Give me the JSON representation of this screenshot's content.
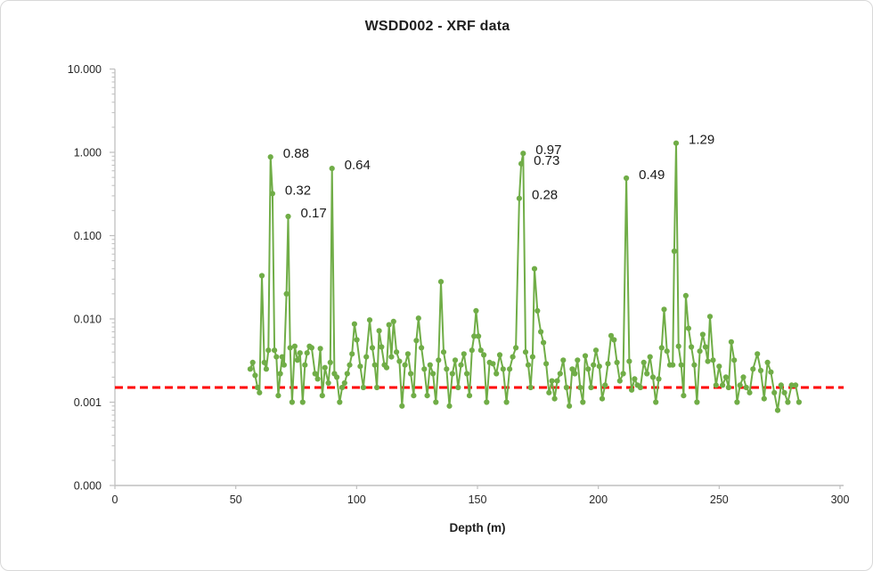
{
  "header": {
    "title": "WSDD002 - XRF data"
  },
  "colors": {
    "series_green": "#70AD47",
    "threshold_red": "#FF0000",
    "axis_gray": "#BFBFBF",
    "text_dark": "#262626"
  },
  "chart_data": {
    "type": "line",
    "title": "WSDD002 - XRF data",
    "xlabel": "Depth (m)",
    "ylabel": "",
    "grid": false,
    "legend": "none",
    "x_scale": "linear",
    "y_scale": "log",
    "xlim": [
      0,
      300
    ],
    "ylim": [
      0.0001,
      10
    ],
    "x_ticks": [
      {
        "value": 0,
        "label": "0"
      },
      {
        "value": 50,
        "label": "50"
      },
      {
        "value": 100,
        "label": "100"
      },
      {
        "value": 150,
        "label": "150"
      },
      {
        "value": 200,
        "label": "200"
      },
      {
        "value": 250,
        "label": "250"
      },
      {
        "value": 300,
        "label": "300"
      }
    ],
    "y_ticks": [
      {
        "value": 0.0001,
        "label": "0.000"
      },
      {
        "value": 0.001,
        "label": "0.001"
      },
      {
        "value": 0.01,
        "label": "0.010"
      },
      {
        "value": 0.1,
        "label": "0.100"
      },
      {
        "value": 1,
        "label": "1.000"
      },
      {
        "value": 10,
        "label": "10.000"
      }
    ],
    "threshold_line": {
      "value": 0.0015,
      "color": "#FF0000",
      "style": "dashed",
      "x_start": 0,
      "x_end": 301.5
    },
    "annotations": [
      {
        "text": "0.88",
        "depth": 64.4,
        "value": 0.88
      },
      {
        "text": "0.32",
        "depth": 65.2,
        "value": 0.32
      },
      {
        "text": "0.17",
        "depth": 71.7,
        "value": 0.17
      },
      {
        "text": "0.64",
        "depth": 89.8,
        "value": 0.64
      },
      {
        "text": "0.97",
        "depth": 168.9,
        "value": 0.97
      },
      {
        "text": "0.73",
        "depth": 168.1,
        "value": 0.73
      },
      {
        "text": "0.28",
        "depth": 167.3,
        "value": 0.28
      },
      {
        "text": "0.49",
        "depth": 211.6,
        "value": 0.49
      },
      {
        "text": "1.29",
        "depth": 232.2,
        "value": 1.29
      }
    ],
    "series": [
      {
        "name": "XRF",
        "color": "#70AD47",
        "marker": "circle",
        "points": [
          [
            56,
            0.0025
          ],
          [
            57,
            0.003
          ],
          [
            58,
            0.0021
          ],
          [
            59,
            0.0015
          ],
          [
            59.8,
            0.0013
          ],
          [
            60.8,
            0.033
          ],
          [
            61.8,
            0.003
          ],
          [
            62.6,
            0.0025
          ],
          [
            63.5,
            0.0042
          ],
          [
            64.4,
            0.88
          ],
          [
            65.2,
            0.32
          ],
          [
            66,
            0.0042
          ],
          [
            66.8,
            0.0035
          ],
          [
            67.6,
            0.0012
          ],
          [
            68.4,
            0.0022
          ],
          [
            69.2,
            0.0035
          ],
          [
            70,
            0.0028
          ],
          [
            71,
            0.02
          ],
          [
            71.7,
            0.17
          ],
          [
            72.5,
            0.0045
          ],
          [
            73.3,
            0.001
          ],
          [
            74.4,
            0.0047
          ],
          [
            75.5,
            0.0032
          ],
          [
            76.6,
            0.0039
          ],
          [
            77.7,
            0.001
          ],
          [
            78.6,
            0.0028
          ],
          [
            79.5,
            0.0039
          ],
          [
            80.5,
            0.0047
          ],
          [
            81.4,
            0.0045
          ],
          [
            82.8,
            0.0022
          ],
          [
            83.9,
            0.0019
          ],
          [
            85,
            0.0044
          ],
          [
            85.8,
            0.0012
          ],
          [
            86.9,
            0.0026
          ],
          [
            88.3,
            0.0017
          ],
          [
            89.1,
            0.003
          ],
          [
            89.8,
            0.64
          ],
          [
            90.8,
            0.0022
          ],
          [
            91.8,
            0.002
          ],
          [
            93,
            0.001
          ],
          [
            94,
            0.0015
          ],
          [
            95,
            0.0017
          ],
          [
            96.1,
            0.0022
          ],
          [
            97.1,
            0.0028
          ],
          [
            98.1,
            0.0038
          ],
          [
            99.1,
            0.0087
          ],
          [
            100.1,
            0.0056
          ],
          [
            101.5,
            0.0027
          ],
          [
            102.8,
            0.0015
          ],
          [
            104,
            0.0035
          ],
          [
            105.4,
            0.0097
          ],
          [
            106.5,
            0.0045
          ],
          [
            107.5,
            0.0028
          ],
          [
            108.4,
            0.0015
          ],
          [
            109.3,
            0.0072
          ],
          [
            110.3,
            0.0046
          ],
          [
            111.5,
            0.0028
          ],
          [
            112.4,
            0.0026
          ],
          [
            113.4,
            0.0085
          ],
          [
            114.4,
            0.0035
          ],
          [
            115.3,
            0.0093
          ],
          [
            116.5,
            0.004
          ],
          [
            117.7,
            0.0031
          ],
          [
            118.8,
            0.0009
          ],
          [
            120,
            0.0028
          ],
          [
            121.2,
            0.0038
          ],
          [
            122.4,
            0.0022
          ],
          [
            123.6,
            0.0012
          ],
          [
            124.7,
            0.0055
          ],
          [
            125.6,
            0.0102
          ],
          [
            126.8,
            0.0045
          ],
          [
            128,
            0.0025
          ],
          [
            129.2,
            0.0012
          ],
          [
            130.4,
            0.0028
          ],
          [
            131.6,
            0.0022
          ],
          [
            132.8,
            0.001
          ],
          [
            133.9,
            0.0032
          ],
          [
            134.9,
            0.028
          ],
          [
            136,
            0.004
          ],
          [
            137.2,
            0.0025
          ],
          [
            138.4,
            0.0009
          ],
          [
            139.6,
            0.0022
          ],
          [
            140.8,
            0.0032
          ],
          [
            142,
            0.0015
          ],
          [
            143.2,
            0.0028
          ],
          [
            144.4,
            0.0038
          ],
          [
            145.6,
            0.0022
          ],
          [
            146.7,
            0.0012
          ],
          [
            147.7,
            0.0042
          ],
          [
            148.6,
            0.0062
          ],
          [
            149.4,
            0.0125
          ],
          [
            150.4,
            0.0062
          ],
          [
            151.4,
            0.0042
          ],
          [
            152.6,
            0.0037
          ],
          [
            153.8,
            0.001
          ],
          [
            155,
            0.003
          ],
          [
            156.4,
            0.0029
          ],
          [
            157.8,
            0.0022
          ],
          [
            159.2,
            0.0037
          ],
          [
            160.6,
            0.0025
          ],
          [
            162,
            0.001
          ],
          [
            163.3,
            0.0025
          ],
          [
            164.6,
            0.0035
          ],
          [
            165.9,
            0.0045
          ],
          [
            167.3,
            0.28
          ],
          [
            168.1,
            0.73
          ],
          [
            168.9,
            0.97
          ],
          [
            169.9,
            0.004
          ],
          [
            171,
            0.0028
          ],
          [
            172,
            0.0015
          ],
          [
            172.8,
            0.0035
          ],
          [
            173.6,
            0.04
          ],
          [
            174.8,
            0.0125
          ],
          [
            176.2,
            0.007
          ],
          [
            177.3,
            0.0052
          ],
          [
            178.4,
            0.0029
          ],
          [
            179.6,
            0.0013
          ],
          [
            180.8,
            0.0018
          ],
          [
            181.9,
            0.0011
          ],
          [
            183,
            0.0018
          ],
          [
            184.2,
            0.0022
          ],
          [
            185.5,
            0.0032
          ],
          [
            186.8,
            0.0015
          ],
          [
            188,
            0.0009
          ],
          [
            189.2,
            0.0025
          ],
          [
            190.3,
            0.0022
          ],
          [
            191.4,
            0.0032
          ],
          [
            192.5,
            0.0015
          ],
          [
            193.6,
            0.001
          ],
          [
            194.6,
            0.0036
          ],
          [
            195.8,
            0.0025
          ],
          [
            197,
            0.0015
          ],
          [
            198,
            0.0028
          ],
          [
            199,
            0.0042
          ],
          [
            200.4,
            0.0027
          ],
          [
            201.6,
            0.0011
          ],
          [
            202.8,
            0.0016
          ],
          [
            204,
            0.0029
          ],
          [
            205.3,
            0.0063
          ],
          [
            206.5,
            0.0056
          ],
          [
            207.7,
            0.003
          ],
          [
            208.9,
            0.0018
          ],
          [
            210.3,
            0.0022
          ],
          [
            211.6,
            0.49
          ],
          [
            212.8,
            0.0031
          ],
          [
            213.8,
            0.0014
          ],
          [
            215,
            0.0019
          ],
          [
            216.2,
            0.0016
          ],
          [
            217.4,
            0.0015
          ],
          [
            218.8,
            0.003
          ],
          [
            220.1,
            0.0022
          ],
          [
            221.4,
            0.0035
          ],
          [
            222.6,
            0.002
          ],
          [
            223.8,
            0.001
          ],
          [
            225,
            0.0019
          ],
          [
            226.2,
            0.0045
          ],
          [
            227.2,
            0.013
          ],
          [
            228.4,
            0.0041
          ],
          [
            229.6,
            0.0028
          ],
          [
            230.8,
            0.0028
          ],
          [
            231.4,
            0.065
          ],
          [
            232.2,
            1.29
          ],
          [
            233.2,
            0.0047
          ],
          [
            234.3,
            0.0028
          ],
          [
            235.3,
            0.0012
          ],
          [
            236.2,
            0.019
          ],
          [
            237.3,
            0.0077
          ],
          [
            238.5,
            0.0046
          ],
          [
            239.7,
            0.0028
          ],
          [
            240.8,
            0.001
          ],
          [
            242,
            0.0041
          ],
          [
            243.2,
            0.0065
          ],
          [
            244.3,
            0.0046
          ],
          [
            245.3,
            0.0031
          ],
          [
            246.2,
            0.0107
          ],
          [
            247.5,
            0.0032
          ],
          [
            248.7,
            0.0016
          ],
          [
            250,
            0.0027
          ],
          [
            251.4,
            0.0016
          ],
          [
            252.8,
            0.002
          ],
          [
            253.9,
            0.0015
          ],
          [
            255,
            0.0053
          ],
          [
            256.2,
            0.0032
          ],
          [
            257.4,
            0.001
          ],
          [
            258.6,
            0.0016
          ],
          [
            260,
            0.002
          ],
          [
            261.2,
            0.0015
          ],
          [
            262.6,
            0.0013
          ],
          [
            264,
            0.0025
          ],
          [
            265.8,
            0.0038
          ],
          [
            267.2,
            0.0024
          ],
          [
            268.6,
            0.0011
          ],
          [
            270,
            0.003
          ],
          [
            271.4,
            0.0023
          ],
          [
            272.8,
            0.0013
          ],
          [
            274.2,
            0.0008
          ],
          [
            275.6,
            0.0016
          ],
          [
            277,
            0.0013
          ],
          [
            278.4,
            0.001
          ],
          [
            280,
            0.0016
          ],
          [
            281.6,
            0.0016
          ],
          [
            283,
            0.001
          ]
        ]
      }
    ]
  }
}
